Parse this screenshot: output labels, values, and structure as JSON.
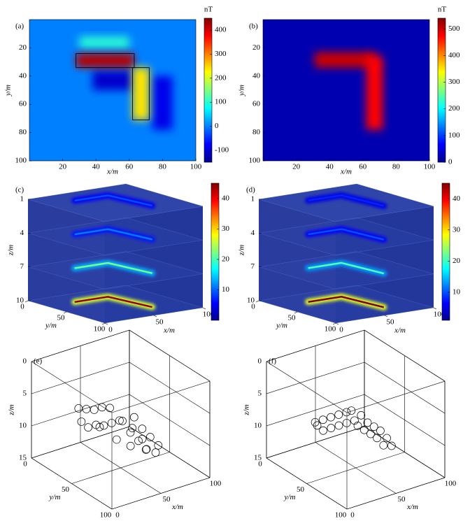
{
  "chart_data": [
    {
      "type": "heatmap",
      "panel": "(a)",
      "xlabel": "x/m",
      "ylabel": "y/m",
      "xlim": [
        0,
        100
      ],
      "ylim": [
        0,
        100
      ],
      "yreverse": true,
      "xticks": [
        20,
        40,
        60,
        80,
        100
      ],
      "yticks": [
        20,
        40,
        60,
        80,
        100
      ],
      "background": 0,
      "bodies": [
        {
          "x": [
            38,
            62
          ],
          "y": [
            36,
            50
          ],
          "value": -110,
          "outline": false
        },
        {
          "x": [
            74,
            86
          ],
          "y": [
            40,
            78
          ],
          "value": -90,
          "outline": false
        },
        {
          "x": [
            30,
            60
          ],
          "y": [
            12,
            20
          ],
          "value": 100,
          "outline": false
        },
        {
          "x": [
            28,
            63
          ],
          "y": [
            24,
            34
          ],
          "value": 420,
          "outline": true
        },
        {
          "x": [
            62,
            72
          ],
          "y": [
            34,
            71
          ],
          "value": 240,
          "outline": true
        }
      ],
      "colorbar": {
        "label": "nT",
        "lim": [
          -150,
          450
        ],
        "ticks": [
          -100,
          0,
          100,
          200,
          300,
          400
        ]
      }
    },
    {
      "type": "heatmap",
      "panel": "(b)",
      "xlabel": "x/m",
      "ylabel": "y/m",
      "xlim": [
        0,
        100
      ],
      "ylim": [
        0,
        100
      ],
      "yreverse": true,
      "xticks": [
        20,
        40,
        60,
        80,
        100
      ],
      "yticks": [
        20,
        40,
        60,
        80,
        100
      ],
      "background": 20,
      "bodies": [
        {
          "x": [
            31,
            68
          ],
          "y": [
            23,
            34
          ],
          "value": 500,
          "outline": false
        },
        {
          "x": [
            62,
            72
          ],
          "y": [
            26,
            78
          ],
          "value": 470,
          "outline": false
        }
      ],
      "colorbar": {
        "label": "nT",
        "lim": [
          0,
          540
        ],
        "ticks": [
          0,
          100,
          200,
          300,
          400,
          500
        ]
      }
    },
    {
      "type": "slices3d",
      "panel": "(c)",
      "xlabel": "x/m",
      "ylabel": "y/m",
      "zlabel": "z/m",
      "xlim": [
        0,
        100
      ],
      "ylim": [
        0,
        100
      ],
      "zlim": [
        1,
        10
      ],
      "xticks": [
        0,
        50,
        100
      ],
      "yticks": [
        0,
        50,
        100
      ],
      "zticks": [
        1,
        4,
        7,
        10
      ],
      "anomaly": {
        "x": [
          28,
          62,
          68
        ],
        "y": [
          25,
          25,
          75
        ]
      },
      "slices": [
        {
          "z": 1,
          "value": 9
        },
        {
          "z": 4,
          "value": 11
        },
        {
          "z": 7,
          "value": 22
        },
        {
          "z": 10,
          "value": 44
        }
      ],
      "colorbar": {
        "lim": [
          0,
          45
        ],
        "ticks": [
          10,
          20,
          30,
          40
        ]
      }
    },
    {
      "type": "slices3d",
      "panel": "(d)",
      "xlabel": "x/m",
      "ylabel": "y/m",
      "zlabel": "z/m",
      "xlim": [
        0,
        100
      ],
      "ylim": [
        0,
        100
      ],
      "zlim": [
        1,
        10
      ],
      "xticks": [
        0,
        50,
        100
      ],
      "yticks": [
        0,
        50,
        100
      ],
      "zticks": [
        1,
        4,
        7,
        10
      ],
      "anomaly": {
        "x": [
          30,
          64,
          68
        ],
        "y": [
          26,
          26,
          76
        ]
      },
      "slices": [
        {
          "z": 1,
          "value": 8
        },
        {
          "z": 4,
          "value": 10
        },
        {
          "z": 7,
          "value": 21
        },
        {
          "z": 10,
          "value": 45
        }
      ],
      "colorbar": {
        "lim": [
          1,
          45
        ],
        "ticks": [
          10,
          20,
          30,
          40
        ]
      }
    },
    {
      "type": "scatter3d",
      "panel": "(e)",
      "xlabel": "x/m",
      "ylabel": "y/m",
      "zlabel": "z/m",
      "xlim": [
        0,
        100
      ],
      "ylim": [
        0,
        100
      ],
      "zlim": [
        0,
        15
      ],
      "xticks": [
        0,
        50,
        100
      ],
      "yticks": [
        0,
        50,
        100
      ],
      "zticks": [
        0,
        5,
        10,
        15
      ],
      "x": [
        30,
        38,
        46,
        54,
        62,
        30,
        38,
        46,
        54,
        62,
        28,
        60,
        60,
        60,
        60,
        72,
        72,
        72,
        72,
        66,
        66,
        66,
        50,
        45,
        56,
        68
      ],
      "y": [
        22,
        22,
        22,
        22,
        22,
        34,
        34,
        34,
        34,
        34,
        28,
        40,
        50,
        60,
        70,
        40,
        50,
        60,
        70,
        74,
        45,
        62,
        45,
        30,
        55,
        55
      ],
      "z": [
        7,
        7.5,
        8,
        8,
        8.5,
        9,
        9,
        9.5,
        9.5,
        9.5,
        8.5,
        9,
        10,
        10.5,
        11,
        9,
        10,
        10.5,
        11,
        11.5,
        10,
        12,
        11,
        10,
        11.5,
        11
      ]
    },
    {
      "type": "scatter3d",
      "panel": "(f)",
      "xlabel": "x/m",
      "ylabel": "y/m",
      "zlabel": "z/m",
      "xlim": [
        0,
        100
      ],
      "ylim": [
        0,
        100
      ],
      "zlim": [
        0,
        15
      ],
      "xticks": [
        0,
        50,
        100
      ],
      "yticks": [
        0,
        50,
        100
      ],
      "zticks": [
        0,
        5,
        10,
        15
      ],
      "x": [
        30,
        38,
        46,
        54,
        62,
        30,
        38,
        46,
        54,
        62,
        28,
        62,
        62,
        62,
        62,
        62,
        72,
        72,
        72,
        72,
        72,
        67,
        67
      ],
      "y": [
        24,
        24,
        24,
        24,
        24,
        34,
        34,
        34,
        34,
        34,
        29,
        38,
        46,
        54,
        62,
        70,
        30,
        38,
        46,
        54,
        62,
        74,
        24
      ],
      "z": [
        9,
        9,
        9,
        9,
        9,
        9.5,
        9.5,
        9.5,
        9.5,
        9.5,
        9,
        10,
        10,
        10,
        10,
        10.5,
        9.5,
        10,
        10,
        10,
        10.5,
        10.5,
        9
      ]
    }
  ]
}
